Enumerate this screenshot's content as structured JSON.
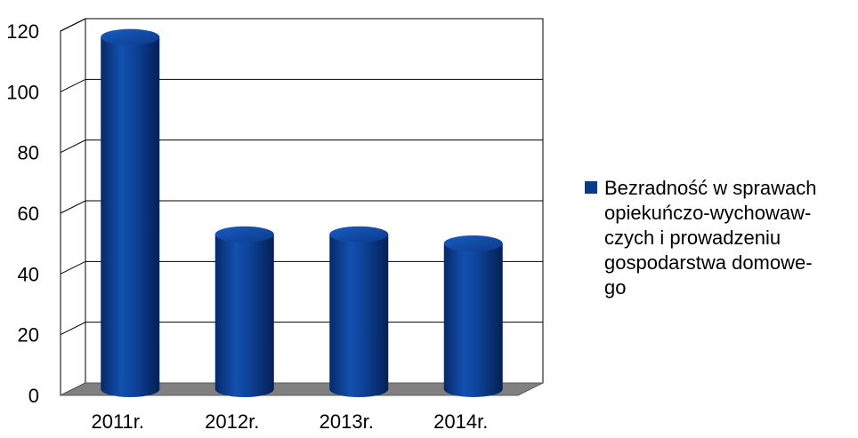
{
  "chart_data": {
    "type": "bar",
    "style": "3d-cylinder",
    "categories": [
      "2011r.",
      "2012r.",
      "2013r.",
      "2014r."
    ],
    "series": [
      {
        "name": "Bezradność w sprawach opiekuńczo-wychowawczych i prowadzeniu gospodarstwa domowego",
        "values": [
          116,
          51,
          51,
          48
        ],
        "color": "#0a3a8c"
      }
    ],
    "legend": {
      "lines": [
        "Bezradność w sprawach",
        "opiekuńczo-wychowaw-",
        "czych i prowadzeniu",
        "gospodarstwa domowe-",
        "go"
      ],
      "placement": "right"
    },
    "yticks": [
      "0",
      "20",
      "40",
      "60",
      "80",
      "100",
      "120"
    ],
    "ylim": [
      0,
      120
    ],
    "grid": true,
    "colors": {
      "bar": "#0a3a8c",
      "floor": "#808080",
      "gridline": "#000000"
    }
  }
}
